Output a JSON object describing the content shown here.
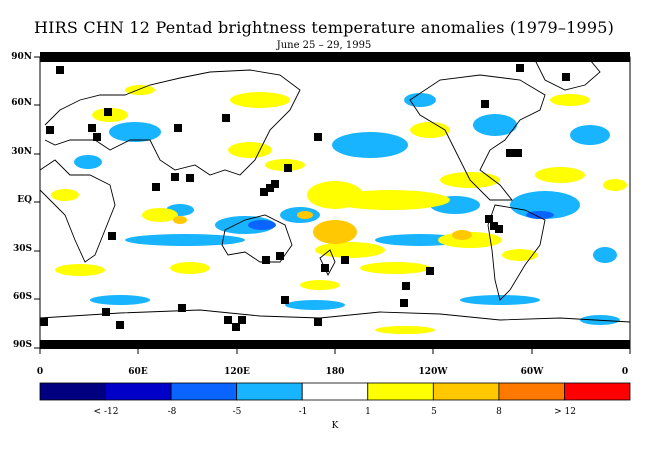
{
  "title": "HIRS CHN 12 Pentad brightness temperature anomalies (1979–1995)",
  "subtitle": "June 25 – 29, 1995",
  "lat_labels": [
    "90N",
    "60N",
    "30N",
    "EQ",
    "30S",
    "60S",
    "90S"
  ],
  "lon_labels": [
    "0",
    "60E",
    "120E",
    "180",
    "120W",
    "60W",
    "0"
  ],
  "colorbar": {
    "colors": [
      "#000080",
      "#0000c8",
      "#0a64ff",
      "#18b4ff",
      "#ffffff",
      "#ffff00",
      "#ffc800",
      "#ff7800",
      "#ff0000"
    ],
    "labels": [
      "< -12",
      "-8",
      "-5",
      "-1",
      "1",
      "5",
      "8",
      "> 12"
    ],
    "unit": "K"
  },
  "colors": {
    "cool": "#18b4ff",
    "cold": "#0a64ff",
    "warm": "#ffff00",
    "hot": "#ffc800",
    "missing": "#000000",
    "coast": "#000000"
  }
}
